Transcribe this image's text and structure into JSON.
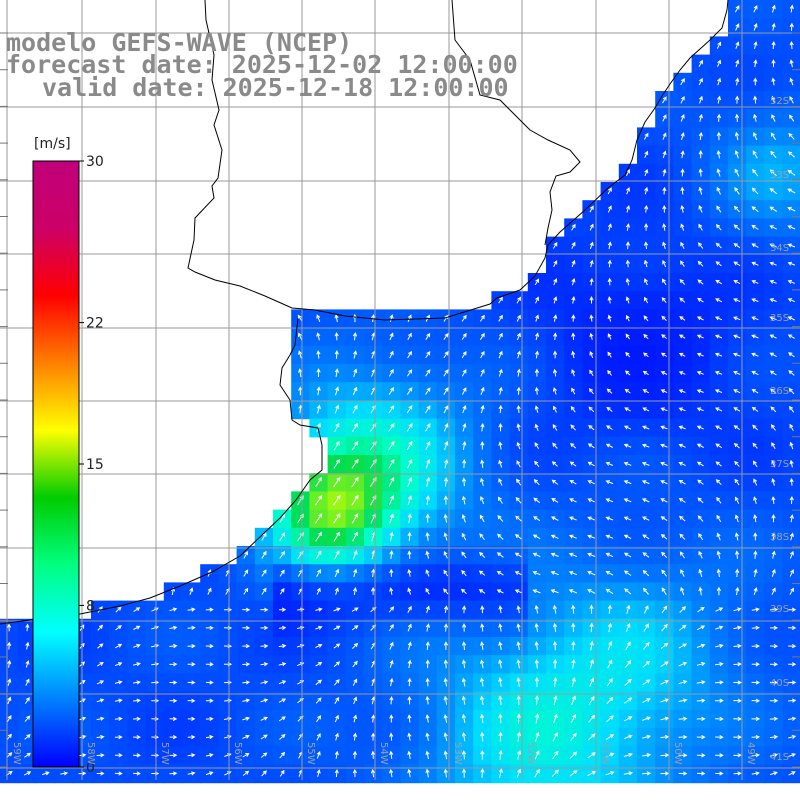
{
  "title": {
    "line1": "modelo GEFS-WAVE (NCEP)",
    "line2": "forecast date: 2025-12-02 12:00:00",
    "line3": "valid date: 2025-12-18 12:00:00"
  },
  "colorbar": {
    "unit": "[m/s]",
    "min": 0,
    "max": 30,
    "tick_labels": [
      "30",
      "22",
      "15",
      "8",
      "0"
    ],
    "tick_values": [
      30,
      22,
      15,
      8,
      0
    ],
    "colors": [
      "#0000ff",
      "#0080ff",
      "#00ffff",
      "#00ff80",
      "#00cc00",
      "#ffff00",
      "#ff8000",
      "#ff0000",
      "#cc0066",
      "#c0007a"
    ]
  },
  "lat_labels": [
    "32S",
    "33S",
    "34S",
    "35S",
    "36S",
    "37S",
    "38S",
    "39S",
    "40S",
    "41S"
  ],
  "lon_labels": [
    "59W",
    "58W",
    "57W",
    "56W",
    "55W",
    "54W",
    "53W",
    "52W",
    "51W",
    "50W",
    "49W"
  ],
  "colors": {
    "land": "#ffffff",
    "coastline": "#000000",
    "gridline": "#9a9a9a",
    "arrow": "#ffffff"
  }
}
